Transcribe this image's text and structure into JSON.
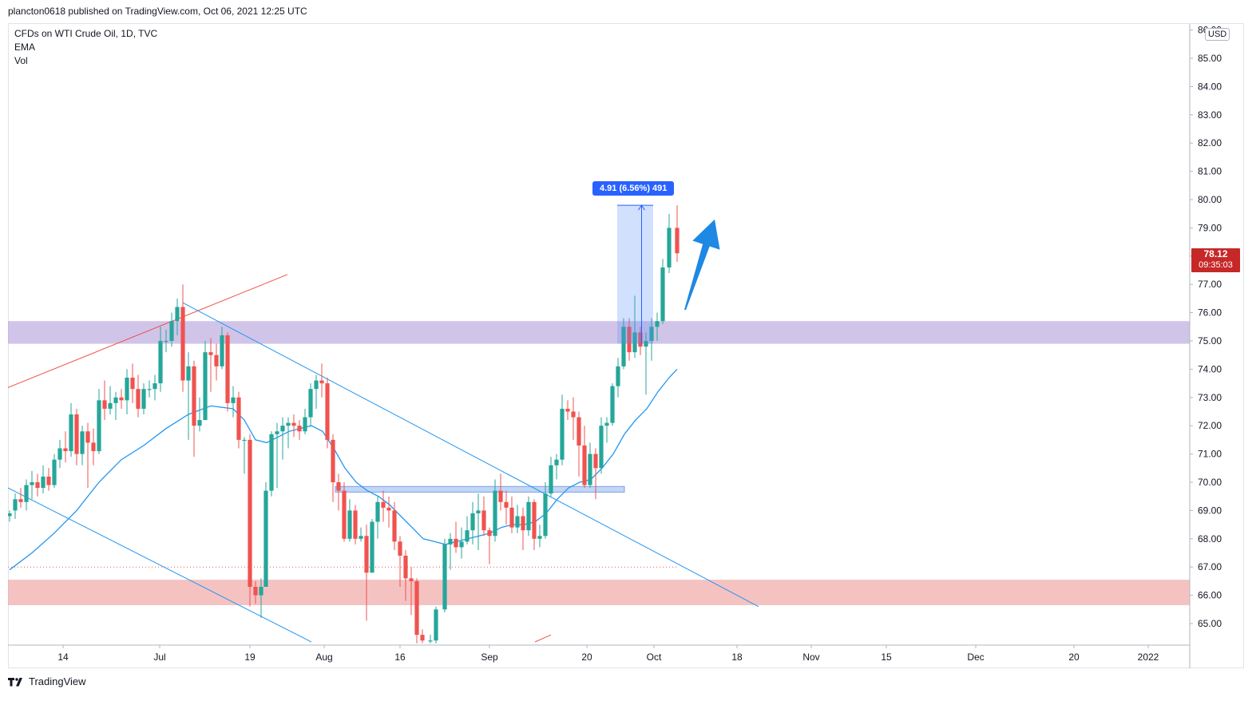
{
  "header": {
    "published": "plancton0618 published on TradingView.com, Oct 06, 2021 12:25 UTC"
  },
  "legend": {
    "symbol": "CFDs on WTI Crude Oil, 1D, TVC",
    "ema": "EMA",
    "vol": "Vol"
  },
  "price_axis": {
    "currency": "USD"
  },
  "last_price": {
    "value": "78.12",
    "countdown": "09:35:03"
  },
  "measure": {
    "label": "4.91 (6.56%) 491"
  },
  "footer": {
    "brand": "TradingView"
  },
  "colors": {
    "up": "#26a69a",
    "down": "#ef5350",
    "ema": "#2196f3",
    "trendline": "#ef5350",
    "channel": "#2196f3",
    "supply_zone": "#b39ddb",
    "demand_zone": "#ef9a9a",
    "measure": "#2962ff"
  },
  "chart_data": {
    "type": "candlestick",
    "title": "CFDs on WTI Crude Oil, 1D, TVC",
    "ylim": [
      64.35,
      86.3
    ],
    "y_ticks": [
      65,
      66,
      67,
      68,
      69,
      70,
      71,
      72,
      73,
      74,
      75,
      76,
      77,
      78,
      79,
      80,
      81,
      82,
      83,
      84,
      85,
      86
    ],
    "x_ticks": [
      {
        "label": "14",
        "x": 79
      },
      {
        "label": "Jul",
        "x": 200
      },
      {
        "label": "19",
        "x": 313
      },
      {
        "label": "Aug",
        "x": 406
      },
      {
        "label": "16",
        "x": 501
      },
      {
        "label": "Sep",
        "x": 613
      },
      {
        "label": "20",
        "x": 735
      },
      {
        "label": "Oct",
        "x": 819
      },
      {
        "label": "18",
        "x": 923
      },
      {
        "label": "Nov",
        "x": 1016
      },
      {
        "label": "15",
        "x": 1110
      },
      {
        "label": "Dec",
        "x": 1222
      },
      {
        "label": "20",
        "x": 1345
      },
      {
        "label": "2022",
        "x": 1438
      }
    ],
    "candles": [
      [
        12,
        68.8,
        68.9,
        68.6,
        69.0
      ],
      [
        19,
        69.0,
        69.4,
        68.7,
        69.6
      ],
      [
        26,
        69.4,
        69.3,
        69.1,
        69.8
      ],
      [
        33,
        69.3,
        69.9,
        69.0,
        70.1
      ],
      [
        40,
        69.9,
        70.0,
        69.4,
        70.4
      ],
      [
        47,
        70.0,
        69.8,
        69.5,
        70.3
      ],
      [
        54,
        69.8,
        70.2,
        69.6,
        70.6
      ],
      [
        61,
        70.2,
        69.9,
        69.7,
        70.5
      ],
      [
        68,
        69.9,
        70.8,
        69.8,
        71.0
      ],
      [
        75,
        70.8,
        71.2,
        70.5,
        71.5
      ],
      [
        82,
        71.2,
        71.1,
        70.7,
        71.8
      ],
      [
        89,
        71.1,
        72.4,
        70.9,
        72.8
      ],
      [
        96,
        72.4,
        71.0,
        70.6,
        72.6
      ],
      [
        103,
        71.0,
        71.8,
        70.6,
        72.0
      ],
      [
        110,
        71.8,
        71.4,
        69.8,
        72.1
      ],
      [
        117,
        71.4,
        71.1,
        70.6,
        71.9
      ],
      [
        124,
        71.1,
        72.9,
        71.0,
        73.3
      ],
      [
        131,
        72.9,
        72.6,
        72.2,
        73.6
      ],
      [
        138,
        72.6,
        72.8,
        72.4,
        73.4
      ],
      [
        145,
        72.8,
        73.0,
        72.2,
        73.2
      ],
      [
        152,
        73.0,
        72.9,
        72.6,
        73.3
      ],
      [
        159,
        72.9,
        73.7,
        72.4,
        74.0
      ],
      [
        166,
        73.7,
        73.3,
        72.8,
        74.2
      ],
      [
        173,
        73.3,
        72.6,
        72.3,
        73.8
      ],
      [
        180,
        72.6,
        73.3,
        72.4,
        73.5
      ],
      [
        187,
        73.3,
        73.3,
        73.0,
        73.6
      ],
      [
        194,
        73.3,
        73.5,
        72.9,
        73.8
      ],
      [
        201,
        73.5,
        75.0,
        73.2,
        75.5
      ],
      [
        208,
        75.0,
        75.0,
        74.6,
        75.4
      ],
      [
        215,
        75.0,
        75.7,
        74.8,
        76.0
      ],
      [
        222,
        75.7,
        76.2,
        75.2,
        76.5
      ],
      [
        229,
        76.2,
        73.6,
        73.2,
        77.0
      ],
      [
        236,
        73.6,
        74.1,
        71.5,
        74.6
      ],
      [
        243,
        74.1,
        72.0,
        70.9,
        74.3
      ],
      [
        250,
        72.0,
        72.2,
        71.8,
        73.0
      ],
      [
        257,
        72.2,
        74.6,
        72.2,
        75.0
      ],
      [
        264,
        74.6,
        74.5,
        73.2,
        75.1
      ],
      [
        271,
        74.5,
        74.1,
        73.6,
        74.9
      ],
      [
        278,
        74.1,
        75.2,
        74.0,
        75.5
      ],
      [
        285,
        75.2,
        72.8,
        72.5,
        75.3
      ],
      [
        292,
        72.8,
        73.0,
        72.3,
        73.4
      ],
      [
        299,
        73.0,
        71.5,
        71.2,
        73.2
      ],
      [
        306,
        71.5,
        71.5,
        70.3,
        71.6
      ],
      [
        313,
        71.5,
        66.3,
        65.6,
        71.7
      ],
      [
        320,
        66.3,
        66.0,
        65.7,
        66.5
      ],
      [
        327,
        66.0,
        66.3,
        65.2,
        66.6
      ],
      [
        333,
        66.3,
        69.7,
        66.3,
        70.0
      ],
      [
        340,
        69.7,
        71.7,
        69.5,
        71.8
      ],
      [
        347,
        71.7,
        71.8,
        69.8,
        72.1
      ],
      [
        354,
        71.8,
        72.0,
        70.8,
        72.3
      ],
      [
        361,
        72.0,
        72.1,
        71.2,
        72.3
      ],
      [
        368,
        72.1,
        72.0,
        71.6,
        72.4
      ],
      [
        375,
        72.0,
        71.8,
        71.5,
        72.2
      ],
      [
        382,
        71.8,
        72.3,
        71.7,
        72.6
      ],
      [
        389,
        72.3,
        73.3,
        72.0,
        73.5
      ],
      [
        396,
        73.3,
        73.6,
        72.6,
        73.8
      ],
      [
        403,
        73.6,
        73.5,
        73.0,
        74.2
      ],
      [
        410,
        73.5,
        71.5,
        71.2,
        73.7
      ],
      [
        417,
        71.5,
        70.0,
        69.3,
        71.7
      ],
      [
        424,
        70.0,
        69.7,
        69.0,
        70.3
      ],
      [
        431,
        69.7,
        68.0,
        67.9,
        70.0
      ],
      [
        438,
        68.0,
        69.0,
        67.9,
        69.4
      ],
      [
        445,
        69.0,
        68.0,
        67.8,
        69.2
      ],
      [
        452,
        68.0,
        68.1,
        67.9,
        68.4
      ],
      [
        459,
        68.1,
        66.8,
        65.1,
        68.5
      ],
      [
        466,
        66.8,
        68.6,
        66.8,
        68.7
      ],
      [
        473,
        68.6,
        69.3,
        68.0,
        69.5
      ],
      [
        480,
        69.3,
        69.1,
        68.6,
        69.7
      ],
      [
        487,
        69.1,
        69.0,
        68.4,
        69.5
      ],
      [
        494,
        69.0,
        67.9,
        67.6,
        69.3
      ],
      [
        501,
        67.9,
        67.4,
        66.3,
        68.1
      ],
      [
        508,
        67.4,
        66.6,
        65.8,
        67.6
      ],
      [
        515,
        66.6,
        66.5,
        65.3,
        67.0
      ],
      [
        522,
        66.5,
        64.6,
        64.3,
        66.6
      ],
      [
        529,
        64.6,
        64.4,
        64.3,
        64.8
      ],
      [
        539,
        64.4,
        64.4,
        64.3,
        64.6
      ],
      [
        546,
        64.4,
        65.5,
        64.3,
        65.6
      ],
      [
        557,
        65.5,
        67.8,
        65.4,
        68.0
      ],
      [
        564,
        67.8,
        68.0,
        66.9,
        68.2
      ],
      [
        571,
        68.0,
        67.7,
        67.5,
        68.6
      ],
      [
        578,
        67.7,
        67.9,
        67.3,
        68.4
      ],
      [
        585,
        67.9,
        68.3,
        67.8,
        68.8
      ],
      [
        592,
        68.3,
        68.9,
        67.8,
        69.3
      ],
      [
        599,
        68.9,
        69.0,
        67.6,
        69.6
      ],
      [
        606,
        69.0,
        68.3,
        68.1,
        69.5
      ],
      [
        613,
        68.3,
        68.1,
        67.1,
        68.4
      ],
      [
        620,
        68.1,
        69.7,
        67.9,
        70.1
      ],
      [
        627,
        69.7,
        69.3,
        69.0,
        70.3
      ],
      [
        634,
        69.3,
        69.1,
        68.5,
        69.7
      ],
      [
        641,
        69.1,
        68.4,
        68.2,
        69.5
      ],
      [
        648,
        68.4,
        68.8,
        68.2,
        69.2
      ],
      [
        655,
        68.8,
        68.3,
        67.6,
        69.1
      ],
      [
        662,
        68.3,
        69.3,
        68.1,
        69.5
      ],
      [
        669,
        69.3,
        68.0,
        67.6,
        69.4
      ],
      [
        676,
        68.0,
        68.1,
        67.7,
        68.5
      ],
      [
        683,
        68.1,
        69.6,
        68.0,
        70.0
      ],
      [
        690,
        69.6,
        70.6,
        69.5,
        70.9
      ],
      [
        697,
        70.6,
        70.8,
        70.1,
        71.0
      ],
      [
        704,
        70.8,
        72.6,
        70.6,
        73.1
      ],
      [
        711,
        72.6,
        72.5,
        72.2,
        72.9
      ],
      [
        718,
        72.5,
        72.3,
        71.5,
        73.0
      ],
      [
        725,
        72.3,
        71.3,
        70.2,
        72.5
      ],
      [
        732,
        71.3,
        69.9,
        69.8,
        72.0
      ],
      [
        739,
        69.9,
        71.0,
        69.8,
        71.4
      ],
      [
        746,
        71.0,
        70.5,
        69.4,
        71.2
      ],
      [
        753,
        70.5,
        72.0,
        70.3,
        72.3
      ],
      [
        760,
        72.0,
        72.1,
        71.4,
        72.3
      ],
      [
        767,
        72.1,
        73.4,
        72.0,
        73.5
      ],
      [
        774,
        73.4,
        74.1,
        73.0,
        74.4
      ],
      [
        781,
        74.1,
        75.5,
        74.0,
        75.8
      ],
      [
        788,
        75.5,
        74.6,
        74.3,
        75.8
      ],
      [
        795,
        74.6,
        75.3,
        74.4,
        76.6
      ],
      [
        802,
        75.3,
        74.8,
        74.5,
        75.5
      ],
      [
        809,
        74.8,
        75.0,
        73.1,
        75.3
      ],
      [
        816,
        75.0,
        75.5,
        74.3,
        75.8
      ],
      [
        823,
        75.5,
        75.7,
        75.0,
        76.0
      ],
      [
        830,
        75.7,
        77.6,
        75.6,
        77.9
      ],
      [
        838,
        77.6,
        79.0,
        77.4,
        79.5
      ],
      [
        848,
        79.0,
        78.1,
        77.8,
        79.8
      ]
    ],
    "ema": [
      [
        12,
        66.9
      ],
      [
        40,
        67.5
      ],
      [
        68,
        68.2
      ],
      [
        96,
        69.0
      ],
      [
        124,
        70.0
      ],
      [
        152,
        70.8
      ],
      [
        180,
        71.3
      ],
      [
        208,
        71.9
      ],
      [
        236,
        72.4
      ],
      [
        264,
        72.7
      ],
      [
        292,
        72.6
      ],
      [
        306,
        72.2
      ],
      [
        320,
        71.5
      ],
      [
        334,
        71.4
      ],
      [
        348,
        71.6
      ],
      [
        362,
        71.8
      ],
      [
        376,
        71.9
      ],
      [
        390,
        72.0
      ],
      [
        404,
        71.8
      ],
      [
        418,
        71.2
      ],
      [
        432,
        70.5
      ],
      [
        446,
        70.0
      ],
      [
        460,
        69.7
      ],
      [
        474,
        69.5
      ],
      [
        488,
        69.2
      ],
      [
        502,
        68.8
      ],
      [
        516,
        68.4
      ],
      [
        530,
        68.0
      ],
      [
        544,
        67.9
      ],
      [
        558,
        67.8
      ],
      [
        572,
        67.9
      ],
      [
        586,
        68.0
      ],
      [
        600,
        68.1
      ],
      [
        614,
        68.2
      ],
      [
        628,
        68.4
      ],
      [
        642,
        68.5
      ],
      [
        656,
        68.5
      ],
      [
        670,
        68.6
      ],
      [
        684,
        68.9
      ],
      [
        698,
        69.4
      ],
      [
        712,
        69.8
      ],
      [
        726,
        70.0
      ],
      [
        740,
        70.1
      ],
      [
        754,
        70.5
      ],
      [
        768,
        71.0
      ],
      [
        782,
        71.7
      ],
      [
        796,
        72.2
      ],
      [
        810,
        72.6
      ],
      [
        824,
        73.2
      ],
      [
        838,
        73.7
      ],
      [
        848,
        74.0
      ]
    ],
    "ema_label": "EMA",
    "trendlines": [
      {
        "color": "#ef5350",
        "points": [
          [
            10,
            73.35
          ],
          [
            360,
            77.35
          ]
        ]
      },
      {
        "color": "#ef5350",
        "points": [
          [
            670,
            64.35
          ],
          [
            690,
            64.6
          ]
        ]
      },
      {
        "color": "#2196f3",
        "points": [
          [
            229,
            76.35
          ],
          [
            950,
            65.6
          ]
        ]
      },
      {
        "color": "#2196f3",
        "points": [
          [
            10,
            69.8
          ],
          [
            390,
            64.35
          ]
        ]
      }
    ],
    "zones": [
      {
        "name": "resistance-zone",
        "from": 74.9,
        "to": 75.7,
        "color": "#b39ddb"
      },
      {
        "name": "support-zone",
        "from": 65.65,
        "to": 66.55,
        "color": "#ef9a9a"
      },
      {
        "name": "breakout-box",
        "from": 69.65,
        "to": 69.85,
        "x1": 420,
        "x2": 782,
        "color": "#90b4ef"
      }
    ],
    "measure": {
      "x1": 773,
      "x2": 818,
      "y1": 74.9,
      "y2": 79.8,
      "label": "4.91 (6.56%) 491"
    },
    "arrow": {
      "x1": 858,
      "y1": 76.1,
      "x2": 895,
      "y2": 79.3
    },
    "last_price": 78.12,
    "dotted_level": 67.0
  }
}
